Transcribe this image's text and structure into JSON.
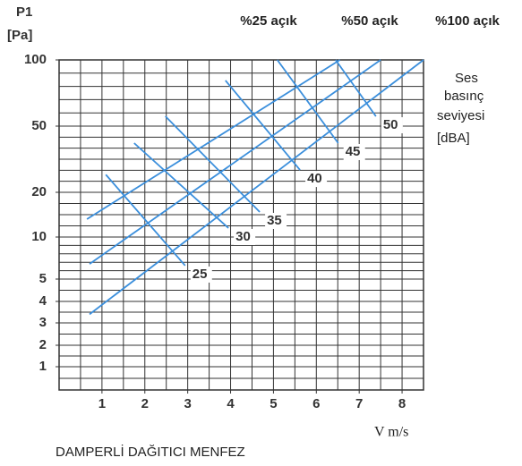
{
  "chart_data": {
    "type": "line",
    "ylabel": [
      "P1",
      "[Pa]"
    ],
    "xlabel": "V m/s",
    "footer": "DAMPERLİ DAĞITICI MENFEZ",
    "legend_title": [
      "Ses",
      "basınç",
      "seviyesi",
      "[dBA]"
    ],
    "xlim": [
      0,
      8.5
    ],
    "xticks": [
      1,
      2,
      3,
      4,
      5,
      6,
      7,
      8
    ],
    "xgrid": [
      0.5,
      1,
      1.5,
      2,
      2.5,
      3,
      3.5,
      4,
      4.5,
      5,
      5.5,
      6,
      6.5,
      7,
      7.5,
      8
    ],
    "ylim": [
      0,
      100
    ],
    "yticks": [
      1,
      2,
      3,
      4,
      5,
      10,
      20,
      50,
      100
    ],
    "ygrid": [
      0.5,
      1,
      1.5,
      2,
      2.5,
      3,
      3.5,
      4,
      4.5,
      5,
      6,
      7,
      8,
      9,
      10,
      12.5,
      15,
      17.5,
      20,
      25,
      30,
      35,
      40,
      45,
      50,
      60,
      70,
      80,
      90
    ],
    "color": "#3b8fdc",
    "openings": [
      {
        "name": "%25 açık",
        "x": [
          0.65,
          6.55
        ],
        "values": [
          14,
          100
        ]
      },
      {
        "name": "%50 açık",
        "x": [
          0.71,
          7.5
        ],
        "values": [
          6.8,
          100
        ]
      },
      {
        "name": "%100 açık",
        "x": [
          0.71,
          8.5
        ],
        "values": [
          3.4,
          100
        ]
      }
    ],
    "series": [
      {
        "name": "25",
        "x": [
          1.09,
          2.94
        ],
        "values": [
          28,
          6.6
        ]
      },
      {
        "name": "30",
        "x": [
          1.75,
          3.95
        ],
        "values": [
          42.3,
          12
        ]
      },
      {
        "name": "35",
        "x": [
          2.48,
          4.68
        ],
        "values": [
          57.4,
          15.6
        ]
      },
      {
        "name": "40",
        "x": [
          3.88,
          5.62
        ],
        "values": [
          84.5,
          30.1
        ]
      },
      {
        "name": "45",
        "x": [
          5.09,
          6.51
        ],
        "values": [
          100,
          42.3
        ]
      },
      {
        "name": "50",
        "x": [
          6.45,
          7.39
        ],
        "values": [
          100,
          57.4
        ]
      }
    ]
  }
}
